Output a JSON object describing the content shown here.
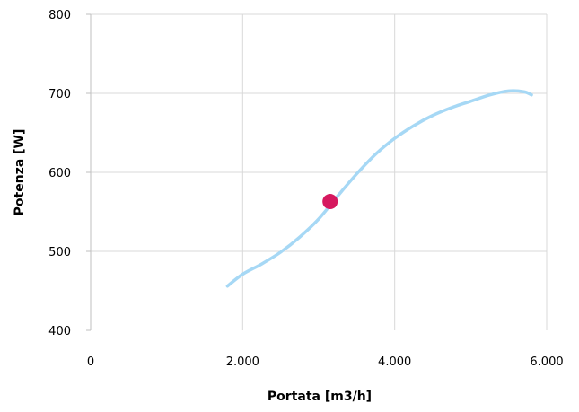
{
  "chart_data": {
    "type": "line",
    "title": "",
    "xlabel": "Portata [m3/h]",
    "ylabel": "Potenza [W]",
    "xlim": [
      0,
      6000
    ],
    "ylim": [
      400,
      800
    ],
    "x_ticks": [
      0,
      2000,
      4000,
      6000
    ],
    "x_tick_labels": [
      "0",
      "2.000",
      "4.000",
      "6.000"
    ],
    "y_ticks": [
      400,
      500,
      600,
      700,
      800
    ],
    "y_tick_labels": [
      "400",
      "500",
      "600",
      "700",
      "800"
    ],
    "grid": true,
    "series": [
      {
        "type": "line",
        "color": "#a6d8f5",
        "x": [
          1800,
          2000,
          2250,
          2500,
          2750,
          3000,
          3250,
          3500,
          3750,
          4000,
          4250,
          4500,
          4750,
          5000,
          5250,
          5500,
          5700,
          5800
        ],
        "y": [
          456,
          471,
          484,
          499,
          518,
          541,
          570,
          598,
          623,
          643,
          659,
          672,
          682,
          690,
          698,
          703,
          702,
          698
        ]
      },
      {
        "type": "scatter",
        "color": "#d6185f",
        "x": [
          3150
        ],
        "y": [
          563
        ]
      }
    ]
  }
}
